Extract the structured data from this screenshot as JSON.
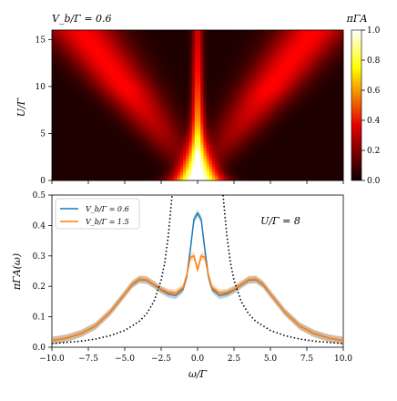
{
  "chart_data": [
    {
      "type": "heatmap",
      "title": "V_b/Γ = 0.6",
      "xlabel": "",
      "ylabel": "U/Γ",
      "xlim": [
        -10,
        10
      ],
      "ylim": [
        0,
        16
      ],
      "yticks": [
        0,
        5,
        10,
        15
      ],
      "colorbar": {
        "label": "πΓA",
        "range": [
          0.0,
          1.0
        ],
        "ticks": [
          "0.0",
          "0.2",
          "0.4",
          "0.6",
          "0.8",
          "1.0"
        ],
        "colormap": "hot"
      },
      "features": "Bright central resonance at ω=0 for small U (intensity ~1.0 at U≈0) narrowing with U; two Hubbard side bands at ω≈±U/2 diverging from center to ω≈±7 at U=16; narrow central peak persists."
    },
    {
      "type": "line",
      "title": "",
      "annotation": "U/Γ = 8",
      "xlabel": "ω/Γ",
      "ylabel": "πΓA(ω)",
      "xlim": [
        -10,
        10
      ],
      "ylim": [
        0,
        0.5
      ],
      "xticks": [
        "−10.0",
        "−7.5",
        "−5.0",
        "−2.5",
        "0.0",
        "2.5",
        "5.0",
        "7.5",
        "10.0"
      ],
      "yticks": [
        "0.0",
        "0.1",
        "0.2",
        "0.3",
        "0.4",
        "0.5"
      ],
      "legend_position": "top-left",
      "x": [
        -10,
        -9,
        -8,
        -7,
        -6,
        -5,
        -4.5,
        -4,
        -3.5,
        -3,
        -2.5,
        -2,
        -1.5,
        -1,
        -0.75,
        -0.5,
        -0.25,
        0,
        0.25,
        0.5,
        0.75,
        1,
        1.5,
        2,
        2.5,
        3,
        3.5,
        4,
        4.5,
        5,
        6,
        7,
        8,
        9,
        10
      ],
      "series": [
        {
          "name": "V_b/Γ = 0.6",
          "color": "#1f77b4",
          "values": [
            0.022,
            0.03,
            0.045,
            0.07,
            0.115,
            0.175,
            0.205,
            0.222,
            0.22,
            0.205,
            0.188,
            0.175,
            0.17,
            0.19,
            0.23,
            0.32,
            0.42,
            0.44,
            0.42,
            0.32,
            0.23,
            0.19,
            0.17,
            0.175,
            0.188,
            0.205,
            0.22,
            0.222,
            0.205,
            0.175,
            0.115,
            0.07,
            0.045,
            0.03,
            0.022
          ]
        },
        {
          "name": "V_b/Γ = 1.5",
          "color": "#ff7f0e",
          "values": [
            0.022,
            0.03,
            0.045,
            0.07,
            0.115,
            0.175,
            0.207,
            0.224,
            0.222,
            0.207,
            0.19,
            0.18,
            0.178,
            0.195,
            0.235,
            0.295,
            0.3,
            0.255,
            0.3,
            0.295,
            0.235,
            0.195,
            0.178,
            0.18,
            0.19,
            0.207,
            0.222,
            0.224,
            0.207,
            0.175,
            0.115,
            0.07,
            0.045,
            0.03,
            0.022
          ]
        },
        {
          "name": "",
          "style": "dotted",
          "color": "#000000",
          "x": [
            -10,
            -9,
            -8,
            -7,
            -6,
            -5,
            -4,
            -3.5,
            -3,
            -2.5,
            -2.25,
            -2,
            -1.75
          ],
          "values": [
            0.012,
            0.016,
            0.02,
            0.027,
            0.038,
            0.055,
            0.085,
            0.11,
            0.15,
            0.22,
            0.28,
            0.37,
            0.5
          ],
          "mirrored": true
        }
      ]
    }
  ]
}
